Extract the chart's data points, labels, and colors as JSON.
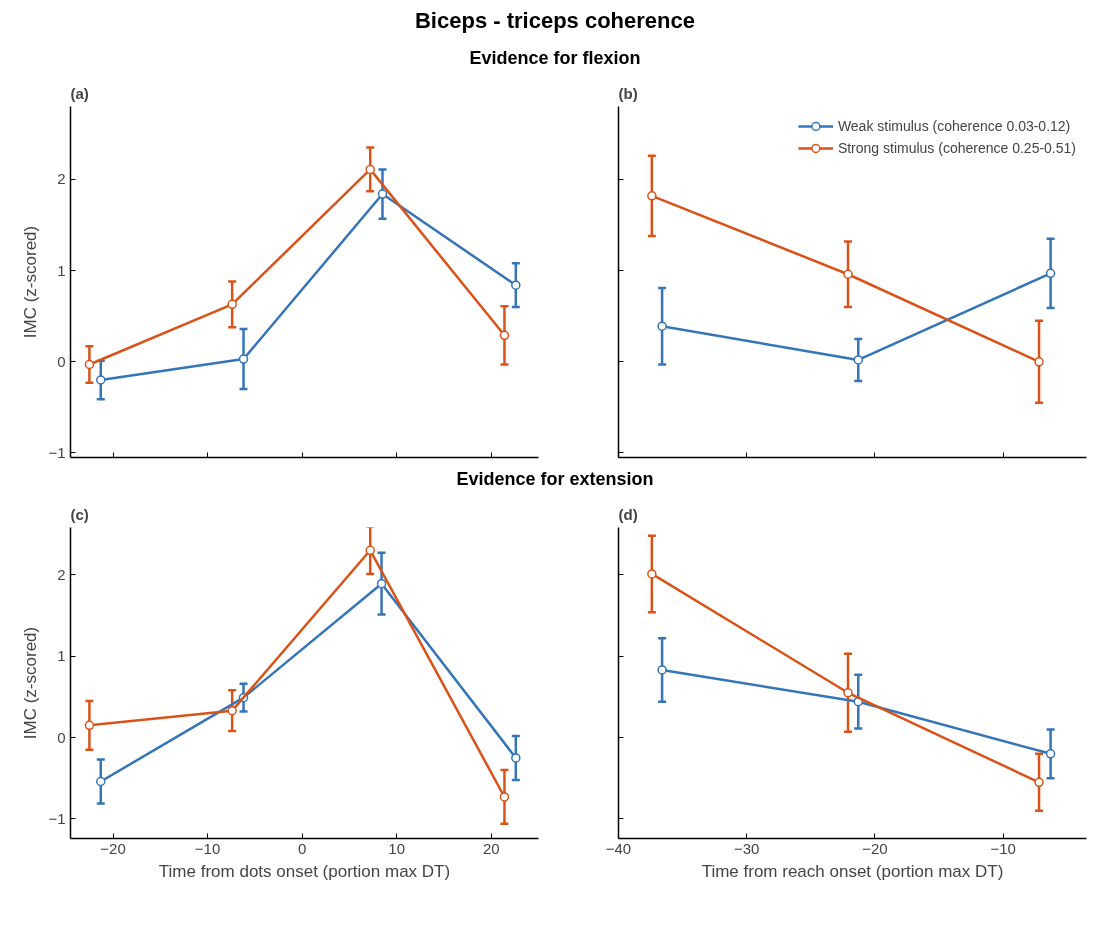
{
  "chart_data": [
    {
      "type": "line",
      "title": "Biceps - triceps coherence",
      "subtitle": "Evidence for flexion",
      "annotations": [
        "(a)"
      ],
      "ylabel": "IMC (z-scored)",
      "xlim": [
        -24.5,
        25
      ],
      "ylim": [
        -1.05,
        2.8
      ],
      "xticks": [
        -20,
        -10,
        0,
        10,
        20
      ],
      "yticks": [
        -1,
        0,
        1,
        2
      ],
      "tick_labels": "y",
      "grid": false,
      "marker": "circle",
      "line_style": "solid",
      "legend": false,
      "series": [
        {
          "color": "#3475b8",
          "x": [
            -21.3,
            -6.2,
            8.5,
            22.6
          ],
          "values": [
            -0.2,
            0.03,
            1.84,
            0.84
          ],
          "errors": [
            0.21,
            0.33,
            0.27,
            0.24
          ]
        },
        {
          "color": "#d95319",
          "x": [
            -22.5,
            -7.4,
            7.2,
            21.4
          ],
          "values": [
            -0.03,
            0.63,
            2.11,
            0.29
          ],
          "errors": [
            0.2,
            0.25,
            0.24,
            0.32
          ]
        }
      ]
    },
    {
      "type": "line",
      "annotations": [
        "(b)"
      ],
      "xlim": [
        -40,
        -3.5
      ],
      "ylim": [
        -1.05,
        2.8
      ],
      "xticks": [
        -40,
        -30,
        -20,
        -10
      ],
      "yticks": [
        -1,
        0,
        1,
        2
      ],
      "tick_labels": false,
      "grid": false,
      "marker": "circle",
      "line_style": "solid",
      "legend": "top right",
      "series": [
        {
          "name": "Weak stimulus (coherence 0.03-0.12)",
          "color": "#3475b8",
          "x": [
            -36.6,
            -21.3,
            -6.3
          ],
          "values": [
            0.39,
            0.02,
            0.97
          ],
          "errors": [
            0.42,
            0.23,
            0.38
          ]
        },
        {
          "name": "Strong stimulus (coherence 0.25-0.51)",
          "color": "#d95319",
          "x": [
            -37.4,
            -22.1,
            -7.2
          ],
          "values": [
            1.82,
            0.96,
            0.0
          ],
          "errors": [
            0.44,
            0.36,
            0.45
          ]
        }
      ]
    },
    {
      "type": "line",
      "subtitle": "Evidence for extension",
      "annotations": [
        "(c)"
      ],
      "ylabel": "IMC (z-scored)",
      "xlabel": "Time from dots onset (portion max DT)",
      "xlim": [
        -24.5,
        25
      ],
      "ylim": [
        -1.24,
        2.58
      ],
      "xticks": [
        -20,
        -10,
        0,
        10,
        20
      ],
      "yticks": [
        -1,
        0,
        1,
        2
      ],
      "grid": false,
      "marker": "circle",
      "line_style": "solid",
      "legend": false,
      "series": [
        {
          "color": "#3475b8",
          "x": [
            -21.3,
            -6.2,
            8.4,
            22.6
          ],
          "values": [
            -0.54,
            0.49,
            1.89,
            -0.25
          ],
          "errors": [
            0.27,
            0.17,
            0.38,
            0.27
          ]
        },
        {
          "color": "#d95319",
          "x": [
            -22.5,
            -7.4,
            7.2,
            21.4
          ],
          "values": [
            0.15,
            0.33,
            2.3,
            -0.73
          ],
          "errors": [
            0.3,
            0.25,
            0.29,
            0.33
          ]
        }
      ]
    },
    {
      "type": "line",
      "annotations": [
        "(d)"
      ],
      "xlabel": "Time from reach onset (portion max DT)",
      "xlim": [
        -40,
        -3.5
      ],
      "ylim": [
        -1.24,
        2.58
      ],
      "xticks": [
        -40,
        -30,
        -20,
        -10
      ],
      "yticks": [
        -1,
        0,
        1,
        2
      ],
      "tick_labels": "x",
      "grid": false,
      "marker": "circle",
      "line_style": "solid",
      "legend": false,
      "series": [
        {
          "color": "#3475b8",
          "x": [
            -36.6,
            -21.3,
            -6.3
          ],
          "values": [
            0.83,
            0.44,
            -0.2
          ],
          "errors": [
            0.39,
            0.33,
            0.3
          ]
        },
        {
          "color": "#d95319",
          "x": [
            -37.4,
            -22.1,
            -7.2
          ],
          "values": [
            2.01,
            0.55,
            -0.55
          ],
          "errors": [
            0.47,
            0.48,
            0.35
          ]
        }
      ]
    }
  ]
}
